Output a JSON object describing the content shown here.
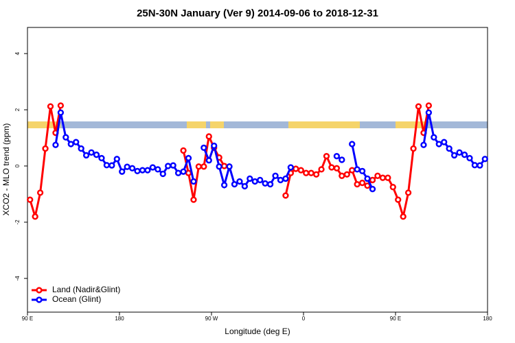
{
  "chart_data": {
    "type": "line",
    "title": "25N-30N January (Ver 9)   2014-09-06 to 2018-12-31",
    "x_label": "Longitude (deg E)",
    "y_label": "XCO2 - MLO trend (ppm)",
    "x": [
      92.5,
      97.5,
      102.5,
      107.5,
      112.5,
      117.5,
      122.5,
      127.5,
      132.5,
      137.5,
      142.5,
      147.5,
      152.5,
      157.5,
      162.5,
      167.5,
      172.5,
      177.5,
      182.5,
      187.5,
      192.5,
      197.5,
      202.5,
      207.5,
      212.5,
      217.5,
      222.5,
      227.5,
      232.5,
      237.5,
      242.5,
      247.5,
      252.5,
      257.5,
      262.5,
      267.5,
      272.5,
      277.5,
      282.5,
      287.5,
      292.5,
      297.5,
      302.5,
      307.5,
      312.5,
      317.5,
      322.5,
      327.5,
      332.5,
      337.5,
      342.5,
      347.5,
      352.5,
      357.5,
      362.5,
      367.5,
      372.5,
      377.5,
      382.5,
      387.5,
      392.5,
      397.5,
      402.5,
      407.5,
      412.5,
      417.5,
      422.5,
      427.5,
      432.5,
      437.5,
      442.5,
      447.5,
      452.5,
      457.5,
      462.5,
      467.5,
      472.5,
      477.5,
      482.5,
      487.5,
      492.5,
      497.5,
      502.5,
      507.5,
      512.5,
      517.5,
      522.5,
      527.5,
      532.5,
      537.5
    ],
    "series": [
      {
        "name": "Land (Nadir&Glint)",
        "color": "#ff0000",
        "values": [
          -1.2,
          -1.8,
          -0.95,
          0.62,
          2.12,
          1.18,
          2.15,
          null,
          null,
          null,
          null,
          null,
          null,
          null,
          null,
          null,
          null,
          null,
          null,
          null,
          null,
          null,
          null,
          null,
          null,
          null,
          null,
          null,
          null,
          null,
          0.55,
          -0.25,
          -1.2,
          -0.02,
          -0.02,
          1.05,
          0.65,
          0.3,
          0.0,
          null,
          null,
          null,
          null,
          null,
          null,
          null,
          null,
          null,
          null,
          null,
          -1.05,
          -0.25,
          -0.1,
          -0.15,
          -0.25,
          -0.25,
          -0.3,
          -0.12,
          0.35,
          -0.05,
          -0.08,
          -0.35,
          -0.3,
          -0.15,
          -0.65,
          -0.6,
          -0.7,
          -0.5,
          -0.35,
          -0.42,
          -0.42,
          -0.75,
          -1.2,
          -1.8,
          -0.95,
          0.62,
          2.12,
          1.18,
          2.15,
          null,
          null,
          null,
          null,
          null,
          null,
          null,
          null,
          null,
          null,
          null
        ]
      },
      {
        "name": "Ocean (Glint)",
        "color": "#0000ff",
        "values": [
          null,
          null,
          null,
          null,
          null,
          0.75,
          1.9,
          1.02,
          0.78,
          0.85,
          0.62,
          0.38,
          0.48,
          0.4,
          0.28,
          0.03,
          0.02,
          0.25,
          -0.2,
          -0.03,
          -0.08,
          -0.18,
          -0.15,
          -0.15,
          -0.05,
          -0.12,
          -0.28,
          0.0,
          0.02,
          -0.25,
          -0.2,
          0.28,
          -0.55,
          null,
          0.65,
          0.2,
          0.72,
          -0.02,
          -0.68,
          -0.02,
          -0.65,
          -0.55,
          -0.72,
          -0.45,
          -0.55,
          -0.5,
          -0.62,
          -0.65,
          -0.35,
          -0.5,
          -0.45,
          -0.05,
          null,
          null,
          null,
          null,
          null,
          null,
          null,
          null,
          0.35,
          0.22,
          null,
          0.78,
          -0.12,
          -0.18,
          -0.45,
          -0.82,
          null,
          null,
          null,
          null,
          null,
          null,
          null,
          null,
          null,
          0.75,
          1.9,
          1.02,
          0.78,
          0.85,
          0.62,
          0.38,
          0.48,
          0.4,
          0.28,
          0.03,
          0.02,
          0.25
        ]
      }
    ],
    "xlim": [
      90,
      540
    ],
    "ylim": [
      -5.2,
      4.93
    ],
    "xticks": [
      {
        "value": 90,
        "label": "90 E"
      },
      180,
      {
        "value": 270,
        "label": "90 W"
      },
      {
        "value": 360,
        "label": "0"
      },
      {
        "value": 450,
        "label": "90 E"
      },
      180
    ],
    "yticks": [
      -4,
      -2,
      0,
      2,
      4
    ],
    "legend": "bottom-left"
  }
}
